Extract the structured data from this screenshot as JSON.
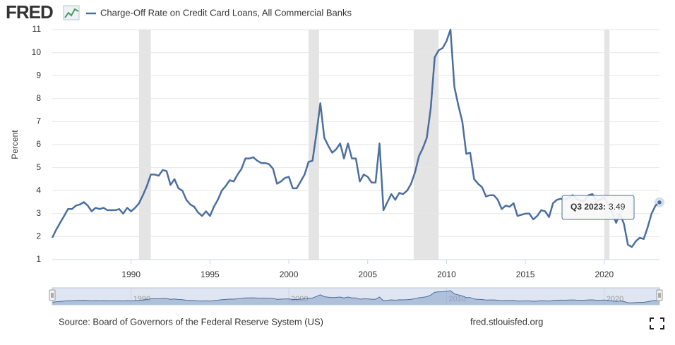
{
  "chart_data": {
    "type": "line",
    "logo": "FRED",
    "ylabel": "Percent",
    "source": "Source: Board of Governors of the Federal Reserve System (US)",
    "site": "fred.stlouisfed.org",
    "xlim": [
      1985,
      2023.5
    ],
    "xticks": [
      1990,
      1995,
      2000,
      2005,
      2010,
      2015,
      2020
    ],
    "ylim": [
      1,
      11
    ],
    "yticks": [
      1,
      2,
      3,
      4,
      5,
      6,
      7,
      8,
      9,
      10,
      11
    ],
    "grid": true,
    "recessions": [
      [
        1990.5,
        1991.25
      ],
      [
        2001.25,
        2001.92
      ],
      [
        2007.92,
        2009.5
      ],
      [
        2020,
        2020.33
      ]
    ],
    "navigator_ticks": [
      1990,
      2000,
      2010,
      2020
    ],
    "tooltip": {
      "label": "Q3 2023:",
      "index": 154
    },
    "x": [
      1985,
      1985.25,
      1985.5,
      1985.75,
      1986,
      1986.25,
      1986.5,
      1986.75,
      1987,
      1987.25,
      1987.5,
      1987.75,
      1988,
      1988.25,
      1988.5,
      1988.75,
      1989,
      1989.25,
      1989.5,
      1989.75,
      1990,
      1990.25,
      1990.5,
      1990.75,
      1991,
      1991.25,
      1991.5,
      1991.75,
      1992,
      1992.25,
      1992.5,
      1992.75,
      1993,
      1993.25,
      1993.5,
      1993.75,
      1994,
      1994.25,
      1994.5,
      1994.75,
      1995,
      1995.25,
      1995.5,
      1995.75,
      1996,
      1996.25,
      1996.5,
      1996.75,
      1997,
      1997.25,
      1997.5,
      1997.75,
      1998,
      1998.25,
      1998.5,
      1998.75,
      1999,
      1999.25,
      1999.5,
      1999.75,
      2000,
      2000.25,
      2000.5,
      2000.75,
      2001,
      2001.25,
      2001.5,
      2001.75,
      2002,
      2002.25,
      2002.5,
      2002.75,
      2003,
      2003.25,
      2003.5,
      2003.75,
      2004,
      2004.25,
      2004.5,
      2004.75,
      2005,
      2005.25,
      2005.5,
      2005.75,
      2006,
      2006.25,
      2006.5,
      2006.75,
      2007,
      2007.25,
      2007.5,
      2007.75,
      2008,
      2008.25,
      2008.5,
      2008.75,
      2009,
      2009.25,
      2009.5,
      2009.75,
      2010,
      2010.25,
      2010.5,
      2010.75,
      2011,
      2011.25,
      2011.5,
      2011.75,
      2012,
      2012.25,
      2012.5,
      2012.75,
      2013,
      2013.25,
      2013.5,
      2013.75,
      2014,
      2014.25,
      2014.5,
      2014.75,
      2015,
      2015.25,
      2015.5,
      2015.75,
      2016,
      2016.25,
      2016.5,
      2016.75,
      2017,
      2017.25,
      2017.5,
      2017.75,
      2018,
      2018.25,
      2018.5,
      2018.75,
      2019,
      2019.25,
      2019.5,
      2019.75,
      2020,
      2020.25,
      2020.5,
      2020.75,
      2021,
      2021.25,
      2021.5,
      2021.75,
      2022,
      2022.25,
      2022.5,
      2022.75,
      2023,
      2023.25,
      2023.5
    ],
    "series": [
      {
        "name": "Charge-Off Rate on Credit Card Loans, All Commercial Banks",
        "color": "#4b6f9e",
        "values": [
          1.95,
          2.3,
          2.6,
          2.9,
          3.2,
          3.2,
          3.35,
          3.4,
          3.5,
          3.35,
          3.1,
          3.25,
          3.2,
          3.25,
          3.15,
          3.15,
          3.15,
          3.2,
          3.0,
          3.25,
          3.1,
          3.25,
          3.45,
          3.8,
          4.2,
          4.7,
          4.7,
          4.65,
          4.9,
          4.85,
          4.25,
          4.5,
          4.1,
          4.0,
          3.6,
          3.4,
          3.3,
          3.05,
          2.9,
          3.1,
          2.9,
          3.3,
          3.6,
          4.0,
          4.2,
          4.45,
          4.4,
          4.7,
          4.95,
          5.4,
          5.4,
          5.45,
          5.3,
          5.2,
          5.2,
          5.15,
          4.95,
          4.3,
          4.4,
          4.55,
          4.6,
          4.1,
          4.1,
          4.4,
          4.7,
          5.25,
          5.3,
          6.5,
          7.8,
          6.3,
          5.95,
          5.65,
          5.8,
          6.05,
          5.4,
          6.05,
          5.4,
          5.4,
          4.4,
          4.7,
          4.6,
          4.35,
          4.35,
          6.05,
          3.15,
          3.5,
          3.85,
          3.6,
          3.9,
          3.85,
          4.0,
          4.3,
          4.8,
          5.5,
          5.85,
          6.3,
          7.6,
          9.8,
          10.1,
          10.2,
          10.5,
          11.0,
          8.5,
          7.7,
          7.0,
          5.6,
          5.65,
          4.5,
          4.3,
          4.15,
          3.75,
          3.8,
          3.8,
          3.6,
          3.2,
          3.35,
          3.3,
          3.45,
          2.9,
          2.95,
          3.0,
          3.0,
          2.75,
          2.9,
          3.15,
          3.1,
          2.85,
          3.45,
          3.6,
          3.65,
          3.6,
          3.7,
          3.8,
          3.65,
          3.55,
          3.55,
          3.8,
          3.85,
          3.55,
          3.6,
          3.7,
          3.4,
          3.05,
          2.6,
          3.0,
          2.55,
          1.65,
          1.55,
          1.8,
          1.95,
          1.9,
          2.4,
          3.0,
          3.35,
          3.49
        ]
      }
    ]
  }
}
